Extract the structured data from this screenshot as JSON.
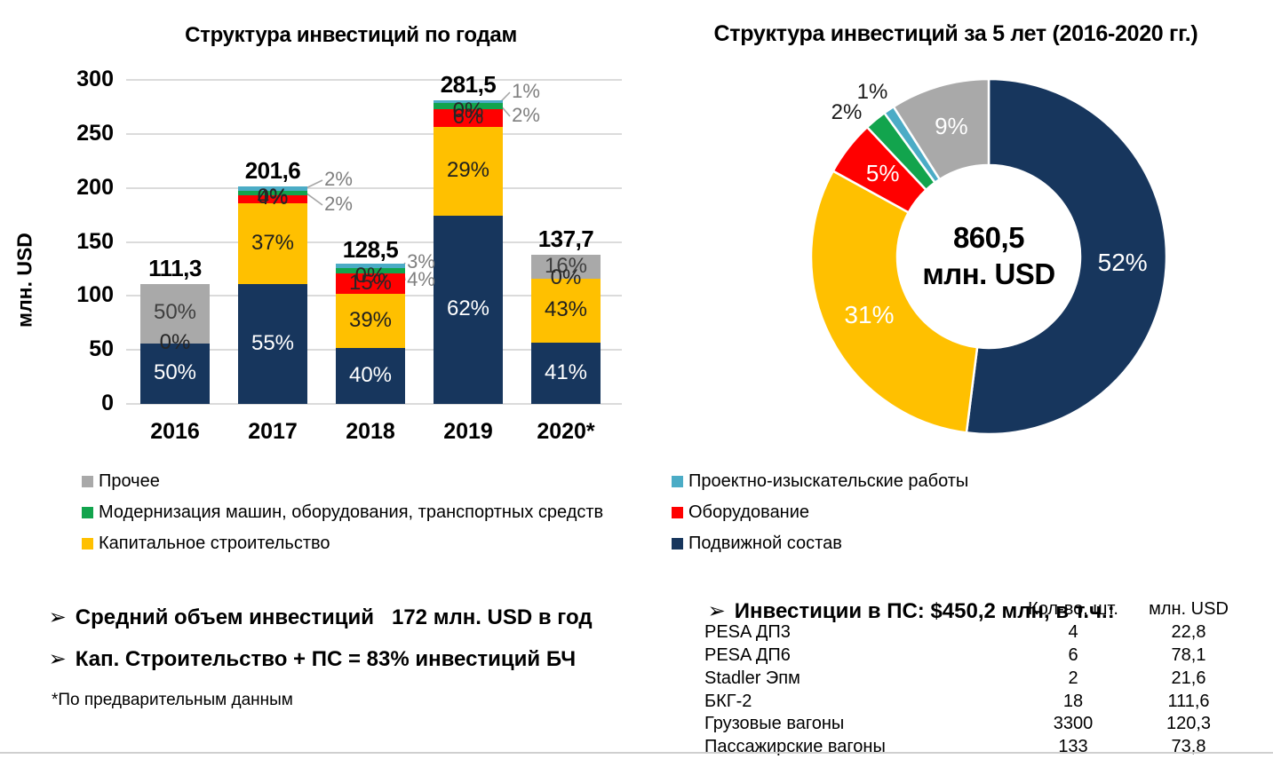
{
  "colors": {
    "rolling_stock_navy": "#17365D",
    "capital_construction_yellow": "#FFC000",
    "equipment_red": "#FF0000",
    "modernization_green": "#12A44D",
    "survey_works_blue": "#4BACC6",
    "other_grey": "#A9A9A9",
    "callout_grey": "#7F7F7F",
    "gridline_grey": "#DBDBDB"
  },
  "chart_data": [
    {
      "type": "bar",
      "stacked": true,
      "title": "Структура инвестиций по годам",
      "ylabel": "млн. USD",
      "ylim": [
        0,
        300
      ],
      "ytick_step": 50,
      "grid": true,
      "categories": [
        "2016",
        "2017",
        "2018",
        "2019",
        "2020*"
      ],
      "totals_display": [
        "111,3",
        "201,6",
        "128,5",
        "281,5",
        "137,7"
      ],
      "totals": [
        111.3,
        201.6,
        128.5,
        281.5,
        137.7
      ],
      "series": [
        {
          "name": "Подвижной состав",
          "color": "#17365D",
          "pct": [
            50,
            55,
            40,
            62,
            41
          ],
          "inline_label": true,
          "label_color": "#FFFFFF"
        },
        {
          "name": "Капитальное строительство",
          "color": "#FFC000",
          "pct": [
            0,
            37,
            39,
            29,
            43
          ],
          "inline_label": true,
          "label_color": "#1F1F1F"
        },
        {
          "name": "Оборудование",
          "color": "#FF0000",
          "pct": [
            0,
            4,
            15,
            6,
            0
          ],
          "inline_label": true,
          "label_color": "#262626"
        },
        {
          "name": "Модернизация машин, оборудования, транспортных средств",
          "color": "#12A44D",
          "pct": [
            0,
            2,
            4,
            2,
            0
          ],
          "inline_label": false,
          "label_color": "#262626"
        },
        {
          "name": "Проектно-изыскательские работы",
          "color": "#4BACC6",
          "pct": [
            0,
            2,
            3,
            1,
            0
          ],
          "inline_label": false,
          "label_color": "#262626"
        },
        {
          "name": "Прочее",
          "color": "#A9A9A9",
          "pct": [
            50,
            0,
            0,
            0,
            16
          ],
          "inline_label": true,
          "label_color": "#3F3F3F"
        }
      ],
      "zero_labels": [
        "0%",
        "0%",
        "0%",
        "0%",
        "0%"
      ],
      "callouts": [
        {
          "year": "2017",
          "series": "Проектно-изыскательские работы",
          "text": "2%"
        },
        {
          "year": "2017",
          "series": "Модернизация машин, оборудования, транспортных средств",
          "text": "2%"
        },
        {
          "year": "2018",
          "series": "Проектно-изыскательские работы",
          "text": "3%"
        },
        {
          "year": "2018",
          "series": "Модернизация машин, оборудования, транспортных средств",
          "text": "4%"
        },
        {
          "year": "2019",
          "series": "Проектно-изыскательские работы",
          "text": "1%"
        },
        {
          "year": "2019",
          "series": "Модернизация машин, оборудования, транспортных средств",
          "text": "2%"
        }
      ]
    },
    {
      "type": "pie",
      "donut": true,
      "title": "Структура инвестиций за 5 лет (2016-2020 гг.)",
      "center_label": [
        "860,5",
        "млн. USD"
      ],
      "slices": [
        {
          "name": "Подвижной состав",
          "pct": 52,
          "color": "#17365D",
          "label_inside": true,
          "label_color": "#FFFFFF"
        },
        {
          "name": "Капитальное строительство",
          "pct": 31,
          "color": "#FFC000",
          "label_inside": true,
          "label_color": "#FFFFFF"
        },
        {
          "name": "Оборудование",
          "pct": 5,
          "color": "#FF0000",
          "label_inside": true,
          "label_color": "#FFFFFF"
        },
        {
          "name": "Модернизация машин, оборудования, транспортных средств",
          "pct": 2,
          "color": "#12A44D",
          "label_inside": false,
          "label_color": "#1A1A1A"
        },
        {
          "name": "Проектно-изыскательские работы",
          "pct": 1,
          "color": "#4BACC6",
          "label_inside": false,
          "label_color": "#1A1A1A"
        },
        {
          "name": "Прочее",
          "pct": 9,
          "color": "#A9A9A9",
          "label_inside": true,
          "label_color": "#FFFFFF"
        }
      ]
    }
  ],
  "legend": {
    "columns": [
      [
        {
          "label": "Прочее",
          "color": "#A9A9A9"
        },
        {
          "label": "Модернизация машин, оборудования, транспортных средств",
          "color": "#12A44D"
        },
        {
          "label": "Капитальное строительство",
          "color": "#FFC000"
        }
      ],
      [
        {
          "label": "Проектно-изыскательские работы",
          "color": "#4BACC6"
        },
        {
          "label": "Оборудование",
          "color": "#FF0000"
        },
        {
          "label": "Подвижной состав",
          "color": "#17365D"
        }
      ]
    ]
  },
  "notes": {
    "bullet_char": "➢",
    "left_bullets": [
      "Средний объем инвестиций   172 млн. USD в год",
      "Кап. Строительство + ПС = 83% инвестиций БЧ"
    ],
    "footnote": "*По предварительным данным",
    "right_heading": "Инвестиции в ПС: $450,2 млн, в т.ч.:"
  },
  "table": {
    "headers": [
      "Кол-во, шт.",
      "млн. USD"
    ],
    "rows": [
      {
        "label": "PESA ДП3",
        "qty": "4",
        "usd": "22,8"
      },
      {
        "label": "PESA ДП6",
        "qty": "6",
        "usd": "78,1"
      },
      {
        "label": "Stadler Эпм",
        "qty": "2",
        "usd": "21,6"
      },
      {
        "label": "БКГ-2",
        "qty": "18",
        "usd": "111,6"
      },
      {
        "label": "Грузовые вагоны",
        "qty": "3300",
        "usd": "120,3"
      },
      {
        "label": "Пассажирские вагоны",
        "qty": "133",
        "usd": "73,8"
      }
    ]
  }
}
